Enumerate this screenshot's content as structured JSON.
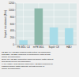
{
  "chart_data": {
    "type": "bar",
    "categories": [
      "PE-BDL C4",
      "mPE-BDL",
      "Super C8",
      "HAO"
    ],
    "values": [
      130,
      1050,
      500,
      480
    ],
    "colors": [
      "#a8dce8",
      "#8cb8aa",
      "#a8dce8",
      "#a8dce8"
    ],
    "ylabel": "Impact resistance (J/m)",
    "ylim": [
      0,
      1200
    ],
    "yticks": [
      0,
      200,
      400,
      600,
      800,
      1000,
      1200
    ],
    "grid": true,
    "annotations": [
      "PE-BDL C4: PE-BDL produced with butene as comonomer",
      "mPE-BDL: PE-BDL produced on metallocene catalyst with",
      "octene as comonomer",
      "Super C8: PE-BDL production improved Ziegler Natta catalyst",
      "and having hexene as comonomer",
      "HAO (Higher Alpha Olefine copolymer): PE-BDL produced on",
      "classical Ziegler Natta catalysts, but with hexene or",
      "octene as comonomer"
    ]
  }
}
